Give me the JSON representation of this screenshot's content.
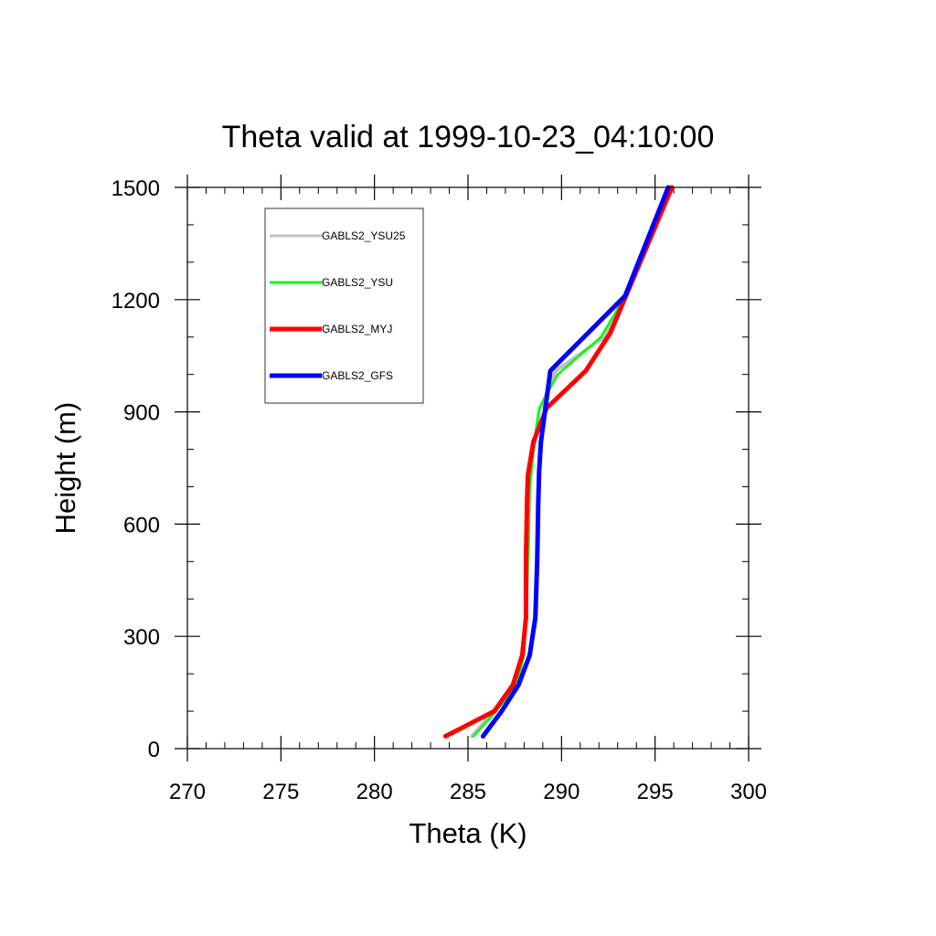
{
  "chart_data": {
    "type": "line",
    "title": "Theta valid at 1999-10-23_04:10:00",
    "xlabel": "Theta (K)",
    "ylabel": "Height (m)",
    "xlim": [
      270,
      300
    ],
    "ylim": [
      0,
      1500
    ],
    "xticks": [
      270,
      275,
      280,
      285,
      290,
      295,
      300
    ],
    "yticks": [
      0,
      300,
      600,
      900,
      1200,
      1500
    ],
    "x_minor_step": 1,
    "y_minor_step": 100,
    "grid": false,
    "legend_position": "top-left",
    "series": [
      {
        "name": "GABLS2_YSU25",
        "color": "#c0c0c0",
        "x": [
          285.2,
          286.4,
          287.5,
          287.9,
          288.1,
          288.2,
          288.3,
          288.5,
          288.8,
          289.7,
          292.3,
          293.3,
          295.9
        ],
        "y": [
          33,
          100,
          170,
          250,
          350,
          500,
          700,
          800,
          900,
          1010,
          1100,
          1200,
          1500
        ]
      },
      {
        "name": "GABLS2_YSU",
        "color": "#00ff00",
        "x": [
          285.3,
          286.5,
          287.6,
          288.0,
          288.1,
          288.2,
          288.3,
          288.5,
          288.8,
          289.8,
          292.1,
          293.3,
          295.8
        ],
        "y": [
          33,
          100,
          170,
          250,
          350,
          500,
          700,
          800,
          910,
          1000,
          1100,
          1200,
          1500
        ]
      },
      {
        "name": "GABLS2_MYJ",
        "color": "#ff0000",
        "x": [
          283.8,
          286.4,
          287.4,
          287.9,
          288.1,
          288.1,
          288.15,
          288.2,
          288.5,
          289.2,
          291.3,
          292.6,
          295.9
        ],
        "y": [
          33,
          100,
          170,
          250,
          350,
          500,
          650,
          730,
          820,
          910,
          1010,
          1110,
          1500
        ]
      },
      {
        "name": "GABLS2_GFS",
        "color": "#0000ff",
        "x": [
          285.8,
          286.8,
          287.7,
          288.3,
          288.6,
          288.7,
          288.75,
          288.8,
          288.9,
          289.4,
          291.4,
          293.4,
          295.7
        ],
        "y": [
          33,
          100,
          170,
          250,
          350,
          500,
          650,
          740,
          820,
          1010,
          1110,
          1210,
          1500
        ]
      }
    ]
  }
}
